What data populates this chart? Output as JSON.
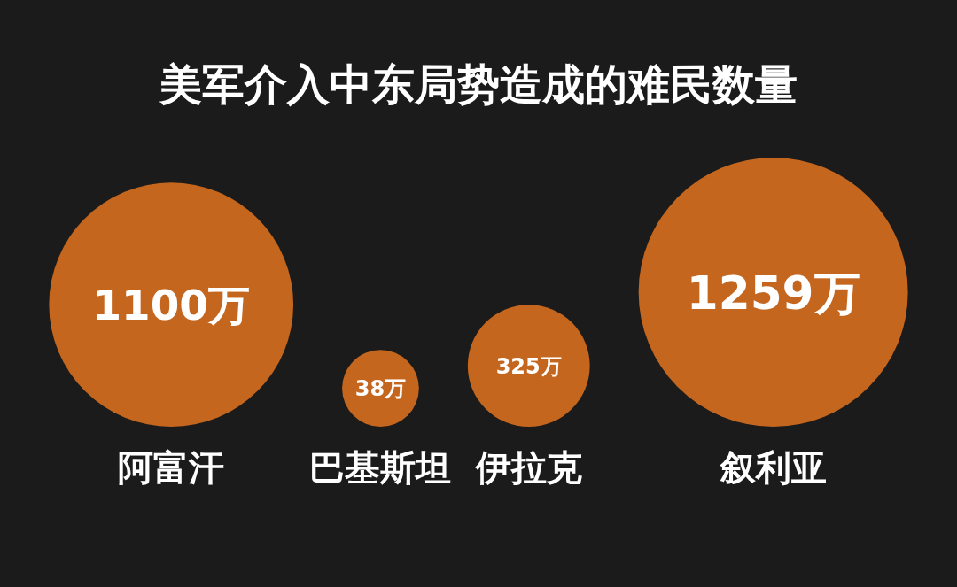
{
  "chart_data": {
    "type": "other",
    "title": "美军介入中东局势造成的难民数量",
    "categories": [
      "阿富汗",
      "巴基斯坦",
      "伊拉克",
      "叙利亚"
    ],
    "values": [
      1100,
      38,
      325,
      1259
    ],
    "value_labels": [
      "1100万",
      "38万",
      "325万",
      "1259万"
    ],
    "color": "#c5661f"
  }
}
